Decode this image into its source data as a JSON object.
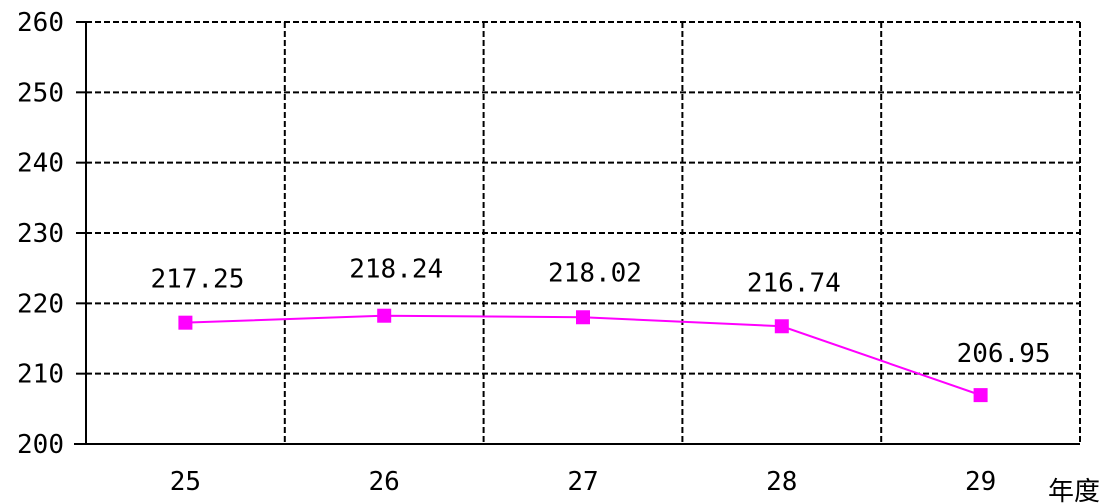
{
  "chart_data": {
    "type": "line",
    "categories": [
      "25",
      "26",
      "27",
      "28",
      "29"
    ],
    "series": [
      {
        "values": [
          217.25,
          218.24,
          218.02,
          216.74,
          206.95
        ],
        "color": "#ff00ff",
        "marker": "square"
      }
    ],
    "data_labels": [
      "217.25",
      "218.24",
      "218.02",
      "216.74",
      "206.95"
    ],
    "xlabel": "年度",
    "ylabel": "",
    "ylim": [
      200,
      260
    ],
    "yticks": [
      "200",
      "210",
      "220",
      "230",
      "240",
      "250",
      "260"
    ],
    "grid": true,
    "grid_style": "dashed"
  }
}
